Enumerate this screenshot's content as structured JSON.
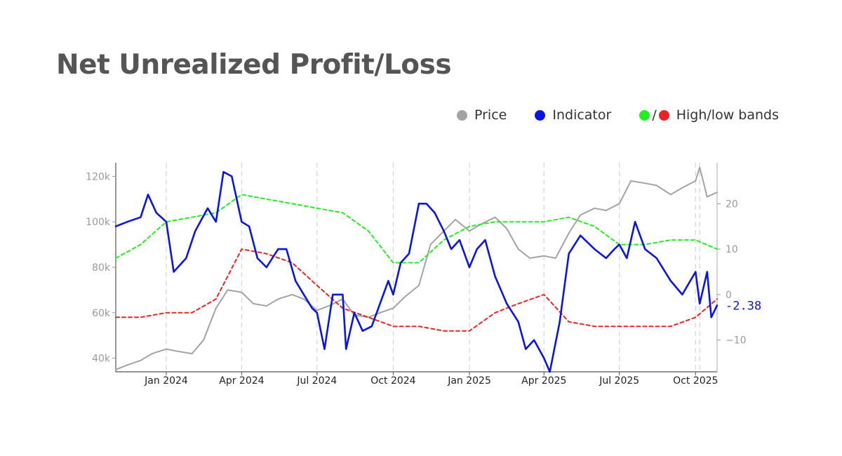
{
  "title": "Net Unrealized Profit/Loss",
  "legend": {
    "price": "Price",
    "indicator": "Indicator",
    "slash": "/",
    "bands": "High/low bands"
  },
  "colors": {
    "price": "#a3a3a3",
    "indicator": "#0a14e6",
    "high_band": "#22ee22",
    "low_band": "#ee2222"
  },
  "chart_data": {
    "type": "line",
    "title": "Net Unrealized Profit/Loss",
    "x_tick_labels": [
      "Jan 2024",
      "Apr 2024",
      "Jul 2024",
      "Oct 2024",
      "Jan 2025",
      "Apr 2025",
      "Jul 2025",
      "Oct 2025"
    ],
    "x_tick_dates": [
      "2024-01-01",
      "2024-04-01",
      "2024-07-01",
      "2024-10-01",
      "2025-01-01",
      "2025-04-01",
      "2025-07-01",
      "2025-10-01"
    ],
    "x_range": [
      "2023-11-01",
      "2025-10-27"
    ],
    "left_axis": {
      "ticks": [
        40000,
        60000,
        80000,
        100000,
        120000
      ],
      "tick_labels": [
        "40k",
        "60k",
        "80k",
        "100k",
        "120k"
      ],
      "range": [
        34000,
        126000
      ]
    },
    "right_axis": {
      "ticks": [
        -10,
        0,
        10,
        20
      ],
      "tick_labels": [
        "−10",
        "0",
        "10",
        "20"
      ],
      "range": [
        -17,
        29
      ]
    },
    "gridlines": "vertical dashed",
    "legend_position": "top-right",
    "last_value_label": "-2.38",
    "series": [
      {
        "name": "Price",
        "axis": "left",
        "style": "solid",
        "x": [
          "2023-11-01",
          "2023-11-15",
          "2023-12-01",
          "2023-12-15",
          "2024-01-01",
          "2024-01-15",
          "2024-02-01",
          "2024-02-15",
          "2024-03-01",
          "2024-03-15",
          "2024-04-01",
          "2024-04-15",
          "2024-05-01",
          "2024-05-15",
          "2024-06-01",
          "2024-06-15",
          "2024-07-01",
          "2024-07-15",
          "2024-08-01",
          "2024-08-15",
          "2024-09-01",
          "2024-09-15",
          "2024-10-01",
          "2024-10-15",
          "2024-11-01",
          "2024-11-15",
          "2024-12-01",
          "2024-12-15",
          "2025-01-01",
          "2025-01-15",
          "2025-02-01",
          "2025-02-15",
          "2025-03-01",
          "2025-03-15",
          "2025-04-01",
          "2025-04-15",
          "2025-05-01",
          "2025-05-15",
          "2025-06-01",
          "2025-06-15",
          "2025-07-01",
          "2025-07-15",
          "2025-08-01",
          "2025-08-15",
          "2025-09-01",
          "2025-09-15",
          "2025-10-01",
          "2025-10-06",
          "2025-10-15",
          "2025-10-27"
        ],
        "values": [
          35000,
          37000,
          39000,
          42000,
          44000,
          43000,
          42000,
          48000,
          62000,
          70000,
          69000,
          64000,
          63000,
          66000,
          68000,
          66000,
          61000,
          63000,
          66000,
          59000,
          58000,
          60000,
          62000,
          67000,
          72000,
          90000,
          96000,
          101000,
          96000,
          99000,
          102000,
          97000,
          88000,
          84000,
          85000,
          84000,
          95000,
          103000,
          106000,
          105000,
          108000,
          118000,
          117000,
          116000,
          112000,
          115000,
          118000,
          124000,
          111000,
          113000
        ]
      },
      {
        "name": "Indicator",
        "axis": "right",
        "style": "solid",
        "x": [
          "2023-11-01",
          "2023-11-15",
          "2023-12-01",
          "2023-12-10",
          "2023-12-20",
          "2024-01-01",
          "2024-01-10",
          "2024-01-25",
          "2024-02-05",
          "2024-02-20",
          "2024-03-01",
          "2024-03-10",
          "2024-03-20",
          "2024-04-01",
          "2024-04-10",
          "2024-04-20",
          "2024-05-01",
          "2024-05-15",
          "2024-05-25",
          "2024-06-05",
          "2024-06-15",
          "2024-06-25",
          "2024-07-01",
          "2024-07-10",
          "2024-07-20",
          "2024-08-01",
          "2024-08-05",
          "2024-08-15",
          "2024-08-25",
          "2024-09-05",
          "2024-09-15",
          "2024-09-25",
          "2024-10-01",
          "2024-10-10",
          "2024-10-20",
          "2024-11-01",
          "2024-11-10",
          "2024-11-20",
          "2024-12-01",
          "2024-12-10",
          "2024-12-20",
          "2025-01-01",
          "2025-01-10",
          "2025-01-20",
          "2025-02-01",
          "2025-02-15",
          "2025-03-01",
          "2025-03-10",
          "2025-03-20",
          "2025-04-01",
          "2025-04-08",
          "2025-04-20",
          "2025-05-01",
          "2025-05-15",
          "2025-06-01",
          "2025-06-15",
          "2025-06-25",
          "2025-07-01",
          "2025-07-10",
          "2025-07-20",
          "2025-08-01",
          "2025-08-15",
          "2025-09-01",
          "2025-09-15",
          "2025-10-01",
          "2025-10-06",
          "2025-10-15",
          "2025-10-20",
          "2025-10-27"
        ],
        "values": [
          15,
          16,
          17,
          22,
          18,
          16,
          5,
          8,
          14,
          19,
          16,
          27,
          26,
          16,
          15,
          8,
          6,
          10,
          10,
          3,
          0,
          -3,
          -4,
          -12,
          0,
          0,
          -12,
          -4,
          -8,
          -7,
          -2,
          3,
          0,
          7,
          9,
          20,
          20,
          18,
          14,
          10,
          12,
          6,
          10,
          12,
          4,
          -2,
          -6,
          -12,
          -10,
          -14,
          -17,
          -6,
          9,
          13,
          10,
          8,
          10,
          11,
          8,
          16,
          10,
          8,
          3,
          0,
          5,
          -2,
          5,
          -5,
          -2.38
        ]
      },
      {
        "name": "High band",
        "axis": "right",
        "style": "dashed",
        "x": [
          "2023-11-01",
          "2023-12-01",
          "2024-01-01",
          "2024-02-01",
          "2024-03-01",
          "2024-04-01",
          "2024-05-01",
          "2024-06-01",
          "2024-07-01",
          "2024-08-01",
          "2024-09-01",
          "2024-10-01",
          "2024-11-01",
          "2024-12-01",
          "2025-01-01",
          "2025-02-01",
          "2025-03-01",
          "2025-04-01",
          "2025-05-01",
          "2025-06-01",
          "2025-07-01",
          "2025-08-01",
          "2025-09-01",
          "2025-10-01",
          "2025-10-27"
        ],
        "values": [
          8,
          11,
          16,
          17,
          18,
          22,
          21,
          20,
          19,
          18,
          14,
          7,
          7,
          12,
          15,
          16,
          16,
          16,
          17,
          15,
          11,
          11,
          12,
          12,
          10
        ]
      },
      {
        "name": "Low band",
        "axis": "right",
        "style": "dashed",
        "x": [
          "2023-11-01",
          "2023-12-01",
          "2024-01-01",
          "2024-02-01",
          "2024-03-01",
          "2024-04-01",
          "2024-05-01",
          "2024-06-01",
          "2024-07-01",
          "2024-08-01",
          "2024-09-01",
          "2024-10-01",
          "2024-11-01",
          "2024-12-01",
          "2025-01-01",
          "2025-02-01",
          "2025-03-01",
          "2025-04-01",
          "2025-05-01",
          "2025-06-01",
          "2025-07-01",
          "2025-08-01",
          "2025-09-01",
          "2025-10-01",
          "2025-10-27"
        ],
        "values": [
          -5,
          -5,
          -4,
          -4,
          -1,
          10,
          9,
          7,
          2,
          -3,
          -5,
          -7,
          -7,
          -8,
          -8,
          -4,
          -2,
          0,
          -6,
          -7,
          -7,
          -7,
          -7,
          -5,
          -1
        ]
      }
    ]
  }
}
